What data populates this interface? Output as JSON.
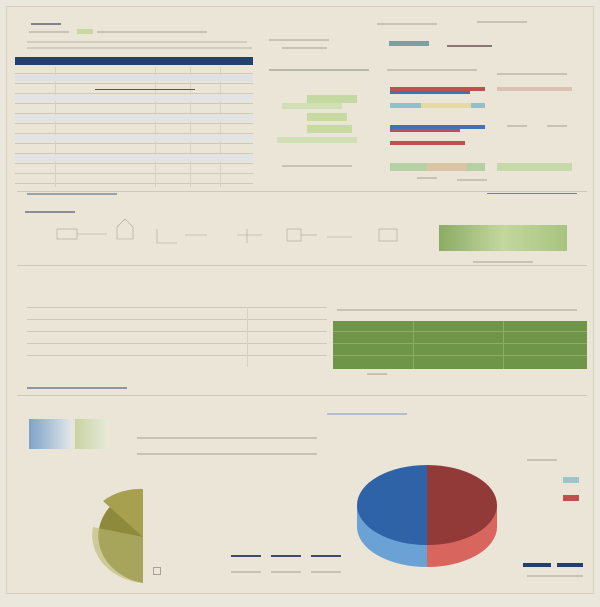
{
  "colors": {
    "paper": "#ebe5d8",
    "navy": "#24406b",
    "olive": "#7f9a4e",
    "green_bar": "#6f9648",
    "light_green": "#c7d9a8",
    "red": "#c0504d",
    "blue": "#3f73b5",
    "tan": "#e8d9a3",
    "teal": "#8fc1c9",
    "olive_dark": "#8d8a3c"
  },
  "icons": [
    "pie-chart-icon",
    "bar-chart-icon",
    "table-icon",
    "line-diagram-icon"
  ]
}
